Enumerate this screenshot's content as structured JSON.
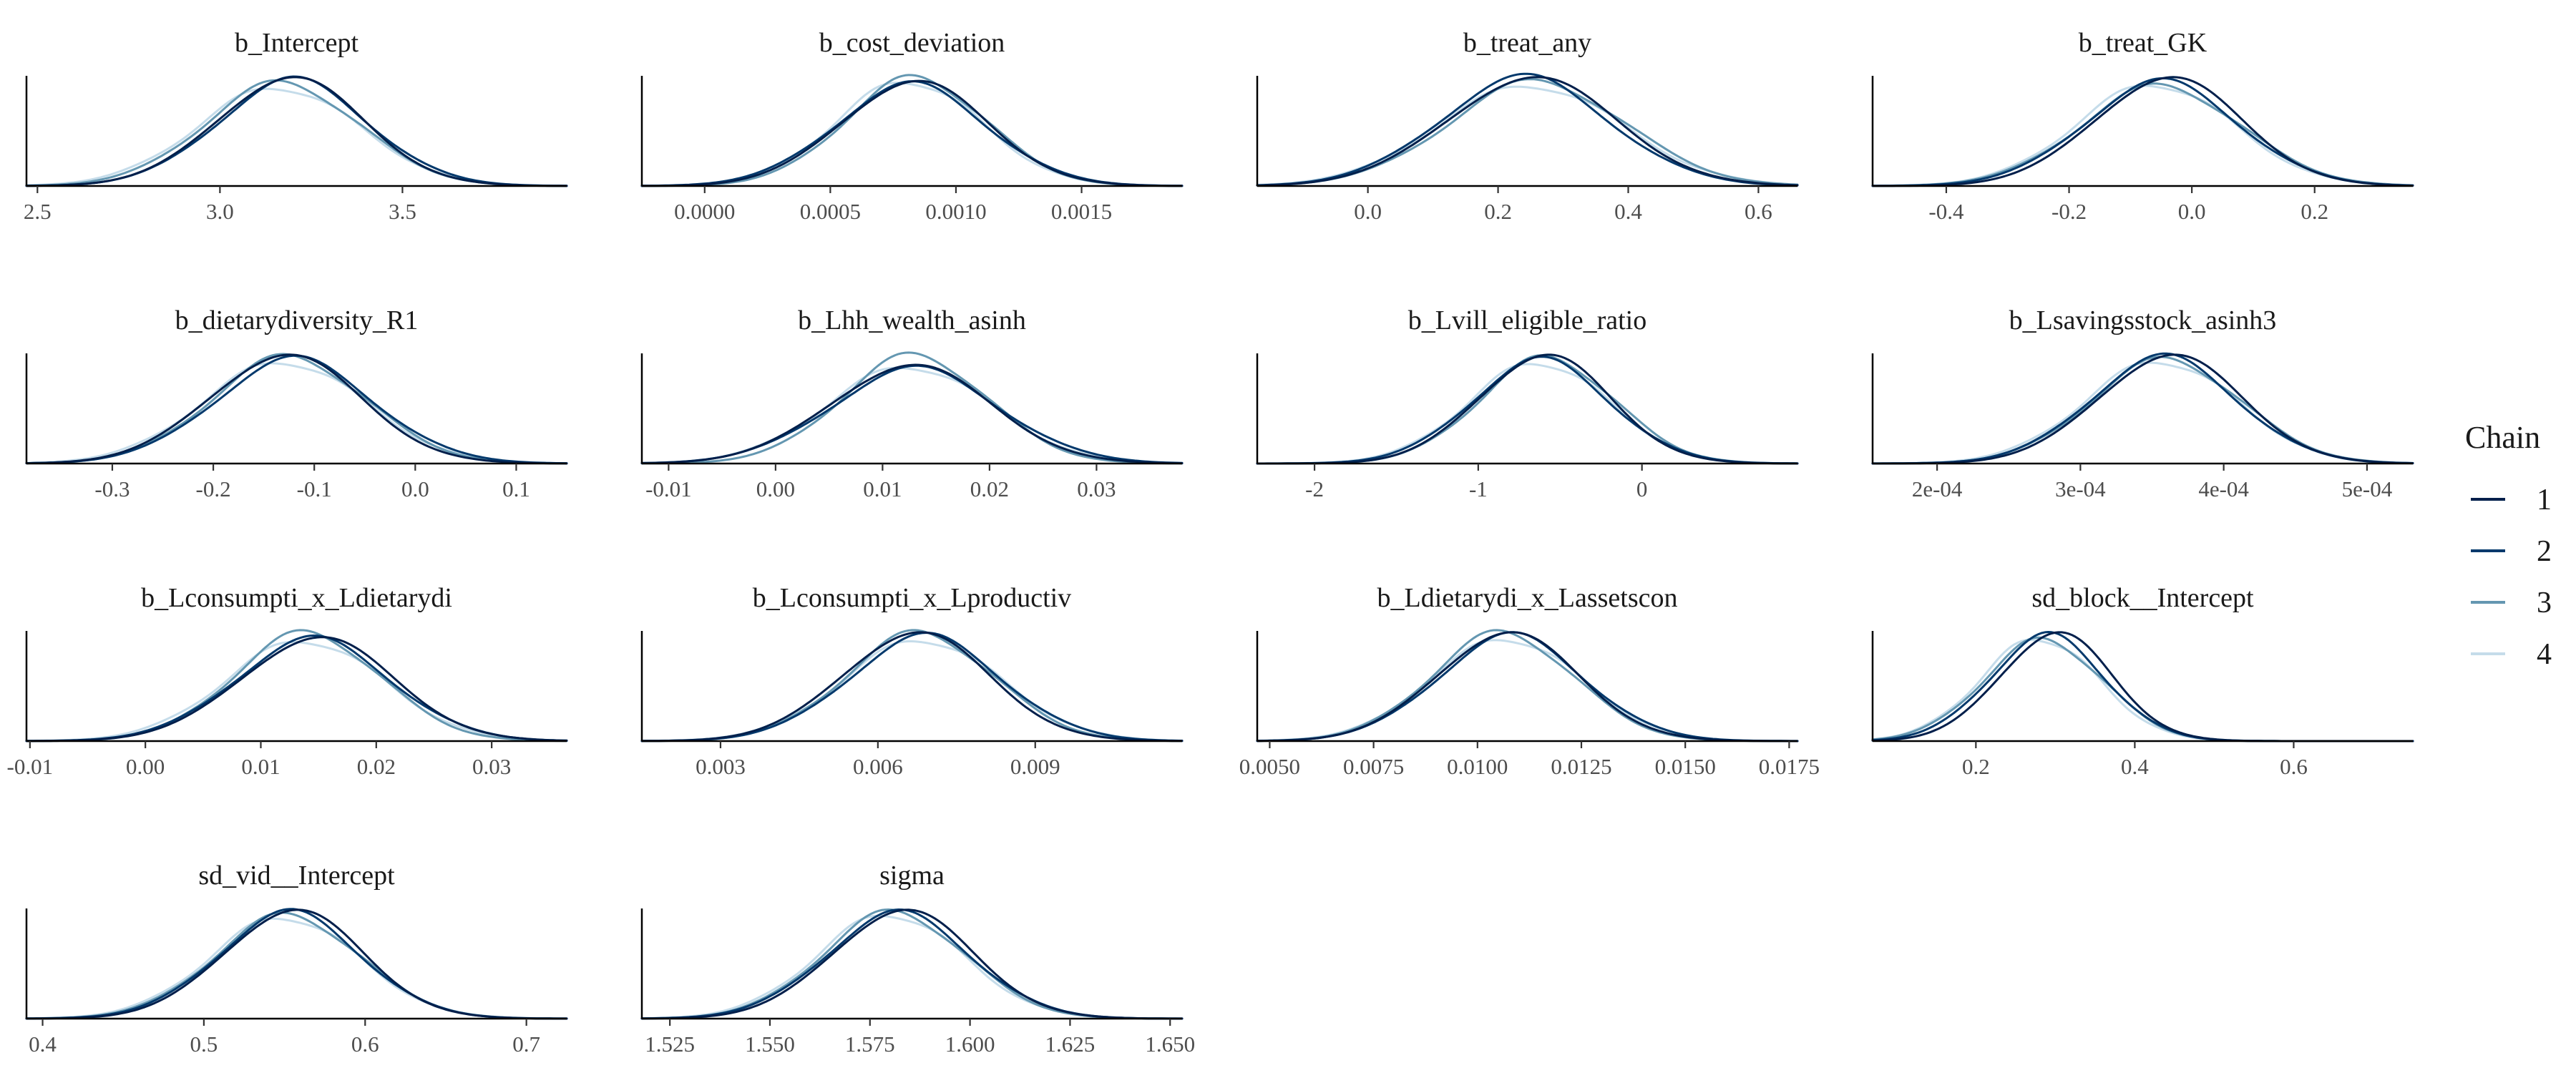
{
  "chart_data": {
    "type": "line",
    "legend": {
      "title": "Chain",
      "position": "right",
      "entries": [
        {
          "label": "1",
          "color": "#011f4b"
        },
        {
          "label": "2",
          "color": "#03396c"
        },
        {
          "label": "3",
          "color": "#6497b1"
        },
        {
          "label": "4",
          "color": "#c5dcea"
        }
      ]
    },
    "grid": false,
    "panels": [
      {
        "title": "b_Intercept",
        "xlim": [
          2.47,
          3.95
        ],
        "ticks": [
          2.5,
          3.0,
          3.5
        ],
        "tick_labels": [
          "2.5",
          "3.0",
          "3.5"
        ],
        "chains": [
          {
            "mean": 3.19,
            "sd": 0.2
          },
          {
            "mean": 3.2,
            "sd": 0.205
          },
          {
            "mean": 3.17,
            "sd": 0.21
          },
          {
            "mean": 3.16,
            "sd": 0.22
          }
        ]
      },
      {
        "title": "b_cost_deviation",
        "xlim": [
          -0.00025,
          0.0019
        ],
        "ticks": [
          0.0,
          0.0005,
          0.001,
          0.0015
        ],
        "tick_labels": [
          "0.0000",
          "0.0005",
          "0.0010",
          "0.0015"
        ],
        "chains": [
          {
            "mean": 0.00083,
            "sd": 0.00029
          },
          {
            "mean": 0.00082,
            "sd": 0.0003
          },
          {
            "mean": 0.00084,
            "sd": 0.00028
          },
          {
            "mean": 0.00081,
            "sd": 0.00029
          }
        ]
      },
      {
        "title": "b_treat_any",
        "xlim": [
          -0.17,
          0.66
        ],
        "ticks": [
          0.0,
          0.2,
          0.4,
          0.6
        ],
        "tick_labels": [
          "0.0",
          "0.2",
          "0.4",
          "0.6"
        ],
        "chains": [
          {
            "mean": 0.25,
            "sd": 0.13
          },
          {
            "mean": 0.24,
            "sd": 0.13
          },
          {
            "mean": 0.26,
            "sd": 0.135
          },
          {
            "mean": 0.25,
            "sd": 0.14
          }
        ]
      },
      {
        "title": "b_treat_GK",
        "xlim": [
          -0.52,
          0.36
        ],
        "ticks": [
          -0.4,
          -0.2,
          0.0,
          0.2
        ],
        "tick_labels": [
          "-0.4",
          "-0.2",
          "0.0",
          "0.2"
        ],
        "chains": [
          {
            "mean": -0.04,
            "sd": 0.12
          },
          {
            "mean": -0.05,
            "sd": 0.125
          },
          {
            "mean": -0.05,
            "sd": 0.13
          },
          {
            "mean": -0.06,
            "sd": 0.128
          }
        ]
      },
      {
        "title": "b_dietarydiversity_R1",
        "xlim": [
          -0.385,
          0.15
        ],
        "ticks": [
          -0.3,
          -0.2,
          -0.1,
          0.0,
          0.1
        ],
        "tick_labels": [
          "-0.3",
          "-0.2",
          "-0.1",
          "0.0",
          "0.1"
        ],
        "chains": [
          {
            "mean": -0.13,
            "sd": 0.075
          },
          {
            "mean": -0.12,
            "sd": 0.078
          },
          {
            "mean": -0.125,
            "sd": 0.076
          },
          {
            "mean": -0.13,
            "sd": 0.08
          }
        ]
      },
      {
        "title": "b_Lhh_wealth_asinh",
        "xlim": [
          -0.0125,
          0.038
        ],
        "ticks": [
          -0.01,
          0.0,
          0.01,
          0.02,
          0.03
        ],
        "tick_labels": [
          "-0.01",
          "0.00",
          "0.01",
          "0.02",
          "0.03"
        ],
        "chains": [
          {
            "mean": 0.0125,
            "sd": 0.0075
          },
          {
            "mean": 0.013,
            "sd": 0.0078
          },
          {
            "mean": 0.013,
            "sd": 0.0068
          },
          {
            "mean": 0.0125,
            "sd": 0.0076
          }
        ]
      },
      {
        "title": "b_Lvill_eligible_ratio",
        "xlim": [
          -2.35,
          0.95
        ],
        "ticks": [
          -2,
          -1,
          0
        ],
        "tick_labels": [
          "-2",
          "-1",
          "0"
        ],
        "chains": [
          {
            "mean": -0.6,
            "sd": 0.4
          },
          {
            "mean": -0.62,
            "sd": 0.42
          },
          {
            "mean": -0.58,
            "sd": 0.41
          },
          {
            "mean": -0.63,
            "sd": 0.43
          }
        ]
      },
      {
        "title": "b_Lsavingsstock_asinh3",
        "xlim": [
          0.000155,
          0.000532
        ],
        "ticks": [
          0.0002,
          0.0003,
          0.0004,
          0.0005
        ],
        "tick_labels": [
          "2e-04",
          "3e-04",
          "4e-04",
          "5e-04"
        ],
        "chains": [
          {
            "mean": 0.000362,
            "sd": 5e-05
          },
          {
            "mean": 0.000358,
            "sd": 5.1e-05
          },
          {
            "mean": 0.00036,
            "sd": 5.2e-05
          },
          {
            "mean": 0.000356,
            "sd": 5.3e-05
          }
        ]
      },
      {
        "title": "b_Lconsumpti_x_Ldietarydi",
        "xlim": [
          -0.0103,
          0.0365
        ],
        "ticks": [
          -0.01,
          0.0,
          0.01,
          0.02,
          0.03
        ],
        "tick_labels": [
          "-0.01",
          "0.00",
          "0.01",
          "0.02",
          "0.03"
        ],
        "chains": [
          {
            "mean": 0.0148,
            "sd": 0.0066
          },
          {
            "mean": 0.0145,
            "sd": 0.0067
          },
          {
            "mean": 0.014,
            "sd": 0.0063
          },
          {
            "mean": 0.0138,
            "sd": 0.0068
          }
        ]
      },
      {
        "title": "b_Lconsumpti_x_Lproductiv",
        "xlim": [
          0.0015,
          0.0118
        ],
        "ticks": [
          0.003,
          0.006,
          0.009
        ],
        "tick_labels": [
          "0.003",
          "0.006",
          "0.009"
        ],
        "chains": [
          {
            "mean": 0.0067,
            "sd": 0.0014
          },
          {
            "mean": 0.0069,
            "sd": 0.00145
          },
          {
            "mean": 0.0068,
            "sd": 0.0014
          },
          {
            "mean": 0.00685,
            "sd": 0.0015
          }
        ]
      },
      {
        "title": "b_Ldietarydi_x_Lassetscon",
        "xlim": [
          0.0047,
          0.0177
        ],
        "ticks": [
          0.005,
          0.0075,
          0.01,
          0.0125,
          0.015,
          0.0175
        ],
        "tick_labels": [
          "0.0050",
          "0.0075",
          "0.0100",
          "0.0125",
          "0.0150",
          "0.0175"
        ],
        "chains": [
          {
            "mean": 0.0107,
            "sd": 0.0017
          },
          {
            "mean": 0.0108,
            "sd": 0.00175
          },
          {
            "mean": 0.0106,
            "sd": 0.0017
          },
          {
            "mean": 0.0107,
            "sd": 0.0018
          }
        ]
      },
      {
        "title": "sd_block__Intercept",
        "xlim": [
          0.07,
          0.75
        ],
        "ticks": [
          0.2,
          0.4,
          0.6
        ],
        "tick_labels": [
          "0.2",
          "0.4",
          "0.6"
        ],
        "chains": [
          {
            "mean": 0.3,
            "sd": 0.07
          },
          {
            "mean": 0.29,
            "sd": 0.072
          },
          {
            "mean": 0.285,
            "sd": 0.075
          },
          {
            "mean": 0.28,
            "sd": 0.074
          }
        ]
      },
      {
        "title": "sd_vid__Intercept",
        "xlim": [
          0.39,
          0.725
        ],
        "ticks": [
          0.4,
          0.5,
          0.6,
          0.7
        ],
        "tick_labels": [
          "0.4",
          "0.5",
          "0.6",
          "0.7"
        ],
        "chains": [
          {
            "mean": 0.555,
            "sd": 0.043
          },
          {
            "mean": 0.553,
            "sd": 0.044
          },
          {
            "mean": 0.552,
            "sd": 0.045
          },
          {
            "mean": 0.55,
            "sd": 0.046
          }
        ]
      },
      {
        "title": "sigma",
        "xlim": [
          1.518,
          1.653
        ],
        "ticks": [
          1.525,
          1.55,
          1.575,
          1.6,
          1.625,
          1.65
        ],
        "tick_labels": [
          "1.525",
          "1.550",
          "1.575",
          "1.600",
          "1.625",
          "1.650"
        ],
        "chains": [
          {
            "mean": 1.583,
            "sd": 0.0175
          },
          {
            "mean": 1.582,
            "sd": 0.018
          },
          {
            "mean": 1.581,
            "sd": 0.0178
          },
          {
            "mean": 1.58,
            "sd": 0.0182
          }
        ]
      }
    ]
  }
}
